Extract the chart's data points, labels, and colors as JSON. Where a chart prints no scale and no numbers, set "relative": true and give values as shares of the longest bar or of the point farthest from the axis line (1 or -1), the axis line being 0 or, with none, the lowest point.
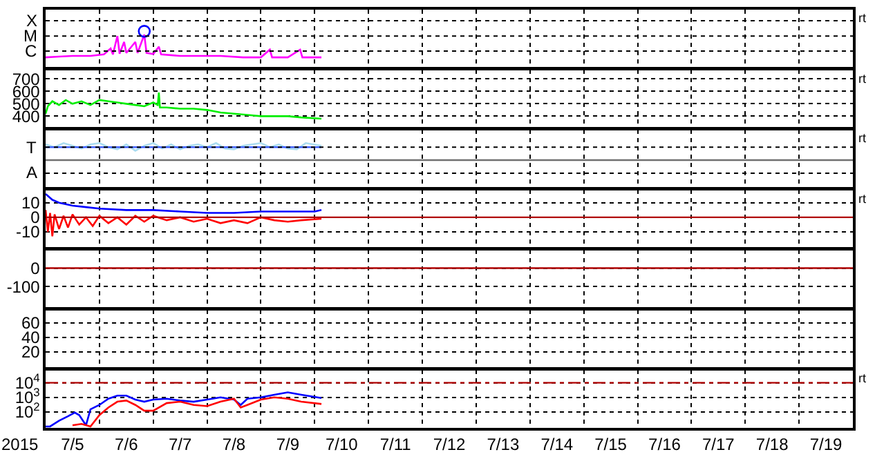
{
  "chart_data": [
    {
      "type": "line",
      "relative": true,
      "xlim": [
        "2015-07-05",
        "2015-07-20"
      ],
      "xticks": [
        {
          "value": "2015-07-06",
          "label": null
        },
        {
          "value": "2015-07-07",
          "label": null
        },
        {
          "value": "2015-07-08",
          "label": null
        },
        {
          "value": "2015-07-09",
          "label": null
        },
        {
          "value": "2015-07-10",
          "label": null
        },
        {
          "value": "2015-07-11",
          "label": null
        },
        {
          "value": "2015-07-12",
          "label": null
        },
        {
          "value": "2015-07-13",
          "label": null
        },
        {
          "value": "2015-07-14",
          "label": null
        },
        {
          "value": "2015-07-15",
          "label": null
        },
        {
          "value": "2015-07-16",
          "label": null
        },
        {
          "value": "2015-07-17",
          "label": null
        },
        {
          "value": "2015-07-18",
          "label": null
        },
        {
          "value": "2015-07-19",
          "label": null
        }
      ],
      "grid": "x",
      "tick_labels": false,
      "annotations": [
        "rt"
      ],
      "ref_lines": [
        {
          "axis": "y",
          "value": 0.46,
          "label": "C",
          "color": "#000000",
          "line_style": "dotted"
        },
        {
          "axis": "y",
          "value": 0.87,
          "label": "M",
          "color": "#000000",
          "line_style": "dotted"
        },
        {
          "axis": "y",
          "value": 1.29,
          "label": "X",
          "color": "#000000",
          "line_style": "dotted"
        }
      ],
      "series": [
        {
          "color": "#ff00ff",
          "x": [
            "2015-07-05T00:00",
            "2015-07-05T06:00",
            "2015-07-05T12:00",
            "2015-07-05T20:00",
            "2015-07-06T02:00",
            "2015-07-06T05:00",
            "2015-07-06T06:00",
            "2015-07-06T08:00",
            "2015-07-06T09:00",
            "2015-07-06T11:00",
            "2015-07-06T12:00",
            "2015-07-06T16:00",
            "2015-07-06T17:00",
            "2015-07-06T20:00",
            "2015-07-06T21:00",
            "2015-07-07T00:00",
            "2015-07-07T02:30",
            "2015-07-07T03:30",
            "2015-07-07T12:00",
            "2015-07-07T20:00",
            "2015-07-08T06:00",
            "2015-07-08T16:00",
            "2015-07-09T00:00",
            "2015-07-09T04:00",
            "2015-07-09T05:00",
            "2015-07-09T12:00",
            "2015-07-09T17:30",
            "2015-07-09T18:30",
            "2015-07-10T03:00"
          ],
          "values": [
            0.29,
            0.31,
            0.33,
            0.33,
            0.37,
            0.53,
            0.37,
            0.87,
            0.39,
            0.71,
            0.41,
            0.71,
            0.41,
            0.91,
            0.41,
            0.38,
            0.58,
            0.37,
            0.33,
            0.33,
            0.33,
            0.29,
            0.29,
            0.5,
            0.29,
            0.29,
            0.5,
            0.29,
            0.29
          ]
        },
        {
          "type": "scatter",
          "marker": "circle",
          "color": "#0000ff",
          "x": [
            "2015-07-06T20:00"
          ],
          "values": [
            1
          ]
        }
      ]
    },
    {
      "type": "line",
      "ylim": [
        305,
        775
      ],
      "yticks": [
        400,
        500,
        600,
        700
      ],
      "xlim": [
        "2015-07-05",
        "2015-07-20"
      ],
      "xticks": [
        {
          "value": "2015-07-06",
          "label": null
        },
        {
          "value": "2015-07-07",
          "label": null
        },
        {
          "value": "2015-07-08",
          "label": null
        },
        {
          "value": "2015-07-09",
          "label": null
        },
        {
          "value": "2015-07-10",
          "label": null
        },
        {
          "value": "2015-07-11",
          "label": null
        },
        {
          "value": "2015-07-12",
          "label": null
        },
        {
          "value": "2015-07-13",
          "label": null
        },
        {
          "value": "2015-07-14",
          "label": null
        },
        {
          "value": "2015-07-15",
          "label": null
        },
        {
          "value": "2015-07-16",
          "label": null
        },
        {
          "value": "2015-07-17",
          "label": null
        },
        {
          "value": "2015-07-18",
          "label": null
        },
        {
          "value": "2015-07-19",
          "label": null
        }
      ],
      "grid": true,
      "tick_labels": "y",
      "annotations": [
        "rt"
      ],
      "series": [
        {
          "color": "#00ee00",
          "x": [
            "2015-07-05T00:00",
            "2015-07-05T01:00",
            "2015-07-05T03:00",
            "2015-07-05T06:00",
            "2015-07-05T09:00",
            "2015-07-05T12:00",
            "2015-07-05T16:00",
            "2015-07-05T20:00",
            "2015-07-06T00:00",
            "2015-07-06T04:00",
            "2015-07-06T08:00",
            "2015-07-06T12:00",
            "2015-07-06T16:00",
            "2015-07-06T20:00",
            "2015-07-07T00:00",
            "2015-07-07T02:00",
            "2015-07-07T02:30",
            "2015-07-07T03:00",
            "2015-07-07T06:00",
            "2015-07-07T12:00",
            "2015-07-07T18:00",
            "2015-07-08T00:00",
            "2015-07-08T06:00",
            "2015-07-08T12:00",
            "2015-07-08T18:00",
            "2015-07-09T00:00",
            "2015-07-09T06:00",
            "2015-07-09T12:00",
            "2015-07-09T18:00",
            "2015-07-10T03:00"
          ],
          "values": [
            420,
            480,
            520,
            490,
            530,
            500,
            520,
            490,
            530,
            520,
            510,
            500,
            490,
            480,
            510,
            490,
            590,
            470,
            470,
            460,
            460,
            450,
            430,
            420,
            410,
            400,
            400,
            400,
            390,
            380
          ]
        }
      ]
    },
    {
      "type": "line",
      "relative": true,
      "xlim": [
        "2015-07-05",
        "2015-07-20"
      ],
      "xticks": [
        {
          "value": "2015-07-06",
          "label": null
        },
        {
          "value": "2015-07-07",
          "label": null
        },
        {
          "value": "2015-07-08",
          "label": null
        },
        {
          "value": "2015-07-09",
          "label": null
        },
        {
          "value": "2015-07-10",
          "label": null
        },
        {
          "value": "2015-07-11",
          "label": null
        },
        {
          "value": "2015-07-12",
          "label": null
        },
        {
          "value": "2015-07-13",
          "label": null
        },
        {
          "value": "2015-07-14",
          "label": null
        },
        {
          "value": "2015-07-15",
          "label": null
        },
        {
          "value": "2015-07-16",
          "label": null
        },
        {
          "value": "2015-07-17",
          "label": null
        },
        {
          "value": "2015-07-18",
          "label": null
        },
        {
          "value": "2015-07-19",
          "label": null
        }
      ],
      "grid": "x",
      "tick_labels": false,
      "annotations": [
        "rt"
      ],
      "ref_lines": [
        {
          "axis": "y",
          "value": 0.62,
          "color": "#707070"
        },
        {
          "axis": "y",
          "value": 0.33,
          "label": "A",
          "color": "#000000",
          "line_style": "dotted"
        },
        {
          "axis": "y",
          "value": 0.91,
          "label": "T",
          "color": "#000000",
          "line_style": "dotted"
        }
      ],
      "series": [
        {
          "color": "#aadcf0",
          "x": [
            "2015-07-05T00:00",
            "2015-07-05T04:00",
            "2015-07-05T08:00",
            "2015-07-05T12:00",
            "2015-07-05T16:00",
            "2015-07-05T20:00",
            "2015-07-06T00:00",
            "2015-07-06T04:00",
            "2015-07-06T08:00",
            "2015-07-06T12:00",
            "2015-07-06T16:00",
            "2015-07-06T20:00",
            "2015-07-07T00:00",
            "2015-07-07T04:00",
            "2015-07-07T08:00",
            "2015-07-07T12:00",
            "2015-07-07T16:00",
            "2015-07-07T20:00",
            "2015-07-08T00:00",
            "2015-07-08T04:00",
            "2015-07-08T08:00",
            "2015-07-08T12:00",
            "2015-07-08T16:00",
            "2015-07-08T20:00",
            "2015-07-09T00:00",
            "2015-07-09T04:00",
            "2015-07-09T08:00",
            "2015-07-09T12:00",
            "2015-07-09T16:00",
            "2015-07-09T20:00",
            "2015-07-10T03:00"
          ],
          "values": [
            0.97,
            0.91,
            1,
            0.94,
            0.88,
            0.97,
            1,
            0.91,
            0.86,
            0.97,
            0.83,
            0.94,
            1,
            0.88,
            0.97,
            0.86,
            0.94,
            0.97,
            0.91,
            1,
            0.88,
            0.86,
            0.94,
            0.97,
            1,
            0.91,
            0.97,
            0.88,
            0.86,
            1,
            0.94
          ]
        },
        {
          "color": "#4060ff",
          "x": [
            "2015-07-05T00:00",
            "2015-07-10T03:00"
          ],
          "values": [
            0.91,
            0.91
          ]
        }
      ]
    },
    {
      "type": "line",
      "ylim": [
        -21,
        19
      ],
      "yticks": [
        -10,
        0,
        10
      ],
      "xlim": [
        "2015-07-05",
        "2015-07-20"
      ],
      "xticks": [
        {
          "value": "2015-07-06",
          "label": null
        },
        {
          "value": "2015-07-07",
          "label": null
        },
        {
          "value": "2015-07-08",
          "label": null
        },
        {
          "value": "2015-07-09",
          "label": null
        },
        {
          "value": "2015-07-10",
          "label": null
        },
        {
          "value": "2015-07-11",
          "label": null
        },
        {
          "value": "2015-07-12",
          "label": null
        },
        {
          "value": "2015-07-13",
          "label": null
        },
        {
          "value": "2015-07-14",
          "label": null
        },
        {
          "value": "2015-07-15",
          "label": null
        },
        {
          "value": "2015-07-16",
          "label": null
        },
        {
          "value": "2015-07-17",
          "label": null
        },
        {
          "value": "2015-07-18",
          "label": null
        },
        {
          "value": "2015-07-19",
          "label": null
        }
      ],
      "grid": true,
      "tick_labels": "y",
      "annotations": [
        "rt"
      ],
      "ref_lines": [
        {
          "axis": "y",
          "value": 0,
          "color": "#b00000"
        }
      ],
      "series": [
        {
          "color": "#ff0000",
          "x": [
            "2015-07-05T00:00",
            "2015-07-05T01:00",
            "2015-07-05T02:00",
            "2015-07-05T03:00",
            "2015-07-05T04:00",
            "2015-07-05T06:00",
            "2015-07-05T08:00",
            "2015-07-05T10:00",
            "2015-07-05T12:00",
            "2015-07-05T15:00",
            "2015-07-05T18:00",
            "2015-07-05T21:00",
            "2015-07-06T00:00",
            "2015-07-06T04:00",
            "2015-07-06T08:00",
            "2015-07-06T12:00",
            "2015-07-06T16:00",
            "2015-07-06T20:00",
            "2015-07-07T00:00",
            "2015-07-07T06:00",
            "2015-07-07T12:00",
            "2015-07-07T18:00",
            "2015-07-08T00:00",
            "2015-07-08T06:00",
            "2015-07-08T12:00",
            "2015-07-08T18:00",
            "2015-07-09T00:00",
            "2015-07-09T06:00",
            "2015-07-09T12:00",
            "2015-07-09T18:00",
            "2015-07-10T03:00"
          ],
          "values": [
            5,
            -10,
            3,
            -13,
            2,
            -8,
            1,
            -7,
            2,
            -5,
            0,
            -6,
            1,
            -4,
            0,
            -5,
            1,
            -3,
            1,
            -2,
            0,
            -3,
            -1,
            -4,
            -2,
            -4,
            0,
            -2,
            -3,
            -2,
            -1
          ]
        },
        {
          "color": "#0000ff",
          "x": [
            "2015-07-05T00:00",
            "2015-07-05T03:00",
            "2015-07-05T06:00",
            "2015-07-05T12:00",
            "2015-07-05T18:00",
            "2015-07-06T00:00",
            "2015-07-06T12:00",
            "2015-07-07T00:00",
            "2015-07-07T12:00",
            "2015-07-08T00:00",
            "2015-07-08T12:00",
            "2015-07-09T00:00",
            "2015-07-09T12:00",
            "2015-07-10T00:00",
            "2015-07-10T03:00"
          ],
          "values": [
            16,
            12,
            10,
            8,
            7,
            6,
            5,
            5,
            4,
            3,
            3,
            4,
            4,
            4,
            5
          ]
        }
      ]
    },
    {
      "type": "line",
      "ylim": [
        -214,
        100
      ],
      "yticks": [
        -100,
        0
      ],
      "xlim": [
        "2015-07-05",
        "2015-07-20"
      ],
      "xticks": [
        {
          "value": "2015-07-06",
          "label": null
        },
        {
          "value": "2015-07-07",
          "label": null
        },
        {
          "value": "2015-07-08",
          "label": null
        },
        {
          "value": "2015-07-09",
          "label": null
        },
        {
          "value": "2015-07-10",
          "label": null
        },
        {
          "value": "2015-07-11",
          "label": null
        },
        {
          "value": "2015-07-12",
          "label": null
        },
        {
          "value": "2015-07-13",
          "label": null
        },
        {
          "value": "2015-07-14",
          "label": null
        },
        {
          "value": "2015-07-15",
          "label": null
        },
        {
          "value": "2015-07-16",
          "label": null
        },
        {
          "value": "2015-07-17",
          "label": null
        },
        {
          "value": "2015-07-18",
          "label": null
        },
        {
          "value": "2015-07-19",
          "label": null
        }
      ],
      "grid": true,
      "tick_labels": "y",
      "ref_lines": [
        {
          "axis": "y",
          "value": 0,
          "color": "#b00000"
        }
      ]
    },
    {
      "type": "line",
      "ylim": [
        -2,
        78
      ],
      "yticks": [
        20,
        40,
        60
      ],
      "xlim": [
        "2015-07-05",
        "2015-07-20"
      ],
      "xticks": [
        {
          "value": "2015-07-06",
          "label": null
        },
        {
          "value": "2015-07-07",
          "label": null
        },
        {
          "value": "2015-07-08",
          "label": null
        },
        {
          "value": "2015-07-09",
          "label": null
        },
        {
          "value": "2015-07-10",
          "label": null
        },
        {
          "value": "2015-07-11",
          "label": null
        },
        {
          "value": "2015-07-12",
          "label": null
        },
        {
          "value": "2015-07-13",
          "label": null
        },
        {
          "value": "2015-07-14",
          "label": null
        },
        {
          "value": "2015-07-15",
          "label": null
        },
        {
          "value": "2015-07-16",
          "label": null
        },
        {
          "value": "2015-07-17",
          "label": null
        },
        {
          "value": "2015-07-18",
          "label": null
        },
        {
          "value": "2015-07-19",
          "label": null
        }
      ],
      "grid": true,
      "tick_labels": "y"
    },
    {
      "type": "line",
      "log": true,
      "ylim": [
        8,
        80000
      ],
      "yticks": [
        {
          "value": 100,
          "label": "10$^{2}$"
        },
        {
          "value": 1000,
          "label": "10$^{3}$"
        },
        {
          "value": 10000,
          "label": "10$^{4}$"
        }
      ],
      "xlim": [
        "2015-07-05",
        "2015-07-20"
      ],
      "xticks": [
        {
          "value": "2015-07-05T12:00",
          "label": "7/5"
        },
        {
          "value": "2015-07-06T12:00",
          "label": "7/6"
        },
        {
          "value": "2015-07-07T12:00",
          "label": "7/7"
        },
        {
          "value": "2015-07-08T12:00",
          "label": "7/8"
        },
        {
          "value": "2015-07-09T12:00",
          "label": "7/9"
        },
        {
          "value": "2015-07-10T12:00",
          "label": "7/10"
        },
        {
          "value": "2015-07-11T12:00",
          "label": "7/11"
        },
        {
          "value": "2015-07-12T12:00",
          "label": "7/12"
        },
        {
          "value": "2015-07-13T12:00",
          "label": "7/13"
        },
        {
          "value": "2015-07-14T12:00",
          "label": "7/14"
        },
        {
          "value": "2015-07-15T12:00",
          "label": "7/15"
        },
        {
          "value": "2015-07-16T12:00",
          "label": "7/16"
        },
        {
          "value": "2015-07-17T12:00",
          "label": "7/17"
        },
        {
          "value": "2015-07-18T12:00",
          "label": "7/18"
        },
        {
          "value": "2015-07-19T12:00",
          "label": "7/19"
        },
        {
          "value": "2015-07-06",
          "label": null
        },
        {
          "value": "2015-07-07",
          "label": null
        },
        {
          "value": "2015-07-08",
          "label": null
        },
        {
          "value": "2015-07-09",
          "label": null
        },
        {
          "value": "2015-07-10",
          "label": null
        },
        {
          "value": "2015-07-11",
          "label": null
        },
        {
          "value": "2015-07-12",
          "label": null
        },
        {
          "value": "2015-07-13",
          "label": null
        },
        {
          "value": "2015-07-14",
          "label": null
        },
        {
          "value": "2015-07-15",
          "label": null
        },
        {
          "value": "2015-07-16",
          "label": null
        },
        {
          "value": "2015-07-17",
          "label": null
        },
        {
          "value": "2015-07-18",
          "label": null
        },
        {
          "value": "2015-07-19",
          "label": null
        }
      ],
      "grid": true,
      "xlabel": "2015",
      "annotations": [
        "rt"
      ],
      "ref_lines": [
        {
          "axis": "y",
          "value": 10000,
          "color": "#b00000",
          "line_style": "dashed"
        }
      ],
      "series": [
        {
          "color": "#0000ff",
          "x": [
            "2015-07-05T00:00",
            "2015-07-05T02:00",
            "2015-07-05T06:00",
            "2015-07-05T10:00",
            "2015-07-05T13:00",
            "2015-07-05T15:00",
            "2015-07-05T18:00",
            "2015-07-05T20:00",
            "2015-07-06T00:00",
            "2015-07-06T04:00",
            "2015-07-06T08:00",
            "2015-07-06T12:00",
            "2015-07-06T16:00",
            "2015-07-06T20:00",
            "2015-07-07T00:00",
            "2015-07-07T06:00",
            "2015-07-07T12:00",
            "2015-07-07T18:00",
            "2015-07-08T00:00",
            "2015-07-08T06:00",
            "2015-07-08T12:00",
            "2015-07-08T15:00",
            "2015-07-08T18:00",
            "2015-07-09T00:00",
            "2015-07-09T06:00",
            "2015-07-09T12:00",
            "2015-07-09T18:00",
            "2015-07-10T03:00"
          ],
          "values": [
            10,
            10,
            25,
            50,
            90,
            60,
            12,
            150,
            300,
            800,
            1300,
            1300,
            700,
            500,
            700,
            800,
            600,
            500,
            700,
            1000,
            700,
            300,
            800,
            1000,
            1500,
            2200,
            1500,
            900
          ]
        },
        {
          "color": "#ff0000",
          "x": [
            "2015-07-05T12:00",
            "2015-07-05T16:00",
            "2015-07-05T20:00",
            "2015-07-06T00:00",
            "2015-07-06T04:00",
            "2015-07-06T08:00",
            "2015-07-06T12:00",
            "2015-07-06T16:00",
            "2015-07-06T20:00",
            "2015-07-07T00:00",
            "2015-07-07T06:00",
            "2015-07-07T12:00",
            "2015-07-07T18:00",
            "2015-07-08T00:00",
            "2015-07-08T06:00",
            "2015-07-08T12:00",
            "2015-07-08T15:00",
            "2015-07-08T18:00",
            "2015-07-09T00:00",
            "2015-07-09T06:00",
            "2015-07-09T12:00",
            "2015-07-09T18:00",
            "2015-07-10T03:00"
          ],
          "values": [
            12,
            15,
            10,
            60,
            200,
            500,
            600,
            300,
            120,
            120,
            400,
            500,
            300,
            250,
            500,
            800,
            200,
            300,
            700,
            1000,
            800,
            500,
            350
          ]
        }
      ]
    }
  ]
}
